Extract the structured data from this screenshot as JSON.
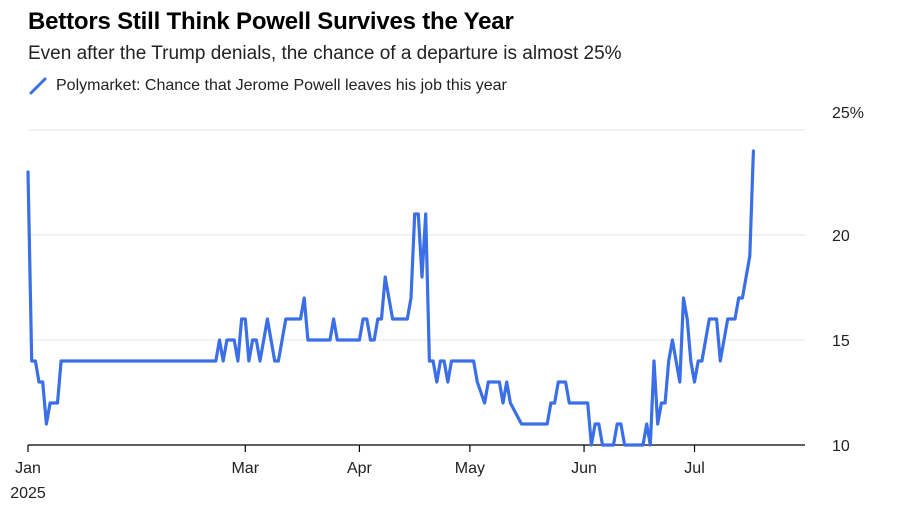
{
  "header": {
    "title": "Bettors Still Think Powell Survives the Year",
    "subtitle": "Even after the Trump denials, the chance of a departure is almost 25%"
  },
  "legend": {
    "label": "Polymarket: Chance that Jerome Powell leaves his job this year"
  },
  "colors": {
    "series": "#3a6fe8",
    "grid": "#e6e6e6",
    "axis": "#000000"
  },
  "chart_data": {
    "type": "line",
    "series": [
      {
        "name": "Polymarket: Chance that Jerome Powell leaves his job this year",
        "points": [
          [
            "2025-01-01",
            23
          ],
          [
            "2025-01-02",
            14
          ],
          [
            "2025-01-03",
            14
          ],
          [
            "2025-01-04",
            13
          ],
          [
            "2025-01-05",
            13
          ],
          [
            "2025-01-06",
            11
          ],
          [
            "2025-01-07",
            12
          ],
          [
            "2025-01-09",
            12
          ],
          [
            "2025-01-10",
            14
          ],
          [
            "2025-01-20",
            14
          ],
          [
            "2025-02-01",
            14
          ],
          [
            "2025-02-15",
            14
          ],
          [
            "2025-02-21",
            14
          ],
          [
            "2025-02-22",
            15
          ],
          [
            "2025-02-23",
            14
          ],
          [
            "2025-02-24",
            15
          ],
          [
            "2025-02-26",
            15
          ],
          [
            "2025-02-27",
            14
          ],
          [
            "2025-02-28",
            16
          ],
          [
            "2025-03-01",
            16
          ],
          [
            "2025-03-02",
            14
          ],
          [
            "2025-03-03",
            15
          ],
          [
            "2025-03-04",
            15
          ],
          [
            "2025-03-05",
            14
          ],
          [
            "2025-03-06",
            15
          ],
          [
            "2025-03-07",
            16
          ],
          [
            "2025-03-09",
            14
          ],
          [
            "2025-03-10",
            14
          ],
          [
            "2025-03-12",
            16
          ],
          [
            "2025-03-16",
            16
          ],
          [
            "2025-03-17",
            17
          ],
          [
            "2025-03-18",
            15
          ],
          [
            "2025-03-24",
            15
          ],
          [
            "2025-03-25",
            16
          ],
          [
            "2025-03-26",
            15
          ],
          [
            "2025-04-01",
            15
          ],
          [
            "2025-04-02",
            16
          ],
          [
            "2025-04-03",
            16
          ],
          [
            "2025-04-04",
            15
          ],
          [
            "2025-04-05",
            15
          ],
          [
            "2025-04-06",
            16
          ],
          [
            "2025-04-07",
            16
          ],
          [
            "2025-04-08",
            18
          ],
          [
            "2025-04-10",
            16
          ],
          [
            "2025-04-12",
            16
          ],
          [
            "2025-04-14",
            16
          ],
          [
            "2025-04-15",
            17
          ],
          [
            "2025-04-16",
            21
          ],
          [
            "2025-04-17",
            21
          ],
          [
            "2025-04-18",
            18
          ],
          [
            "2025-04-19",
            21
          ],
          [
            "2025-04-20",
            14
          ],
          [
            "2025-04-21",
            14
          ],
          [
            "2025-04-22",
            13
          ],
          [
            "2025-04-23",
            14
          ],
          [
            "2025-04-24",
            14
          ],
          [
            "2025-04-25",
            13
          ],
          [
            "2025-04-26",
            14
          ],
          [
            "2025-04-30",
            14
          ],
          [
            "2025-05-01",
            14
          ],
          [
            "2025-05-02",
            14
          ],
          [
            "2025-05-03",
            13
          ],
          [
            "2025-05-05",
            12
          ],
          [
            "2025-05-06",
            13
          ],
          [
            "2025-05-09",
            13
          ],
          [
            "2025-05-10",
            12
          ],
          [
            "2025-05-11",
            13
          ],
          [
            "2025-05-12",
            12
          ],
          [
            "2025-05-15",
            11
          ],
          [
            "2025-05-22",
            11
          ],
          [
            "2025-05-23",
            12
          ],
          [
            "2025-05-24",
            12
          ],
          [
            "2025-05-25",
            13
          ],
          [
            "2025-05-27",
            13
          ],
          [
            "2025-05-28",
            12
          ],
          [
            "2025-06-02",
            12
          ],
          [
            "2025-06-03",
            10
          ],
          [
            "2025-06-04",
            11
          ],
          [
            "2025-06-05",
            11
          ],
          [
            "2025-06-06",
            10
          ],
          [
            "2025-06-09",
            10
          ],
          [
            "2025-06-10",
            11
          ],
          [
            "2025-06-11",
            11
          ],
          [
            "2025-06-12",
            10
          ],
          [
            "2025-06-17",
            10
          ],
          [
            "2025-06-18",
            11
          ],
          [
            "2025-06-19",
            10
          ],
          [
            "2025-06-20",
            14
          ],
          [
            "2025-06-21",
            11
          ],
          [
            "2025-06-22",
            12
          ],
          [
            "2025-06-23",
            12
          ],
          [
            "2025-06-24",
            14
          ],
          [
            "2025-06-25",
            15
          ],
          [
            "2025-06-26",
            14
          ],
          [
            "2025-06-27",
            13
          ],
          [
            "2025-06-28",
            17
          ],
          [
            "2025-06-29",
            16
          ],
          [
            "2025-06-30",
            14
          ],
          [
            "2025-07-01",
            13
          ],
          [
            "2025-07-02",
            14
          ],
          [
            "2025-07-03",
            14
          ],
          [
            "2025-07-05",
            16
          ],
          [
            "2025-07-07",
            16
          ],
          [
            "2025-07-08",
            14
          ],
          [
            "2025-07-09",
            15
          ],
          [
            "2025-07-10",
            16
          ],
          [
            "2025-07-12",
            16
          ],
          [
            "2025-07-13",
            17
          ],
          [
            "2025-07-14",
            17
          ],
          [
            "2025-07-15",
            18
          ],
          [
            "2025-07-16",
            19
          ],
          [
            "2025-07-17",
            24
          ]
        ]
      }
    ],
    "xlabel": "",
    "ylabel": "",
    "y_ticks": [
      10,
      15,
      20,
      25
    ],
    "y_tick_labels": [
      "10",
      "15",
      "20",
      "25%"
    ],
    "ylim": [
      10,
      25
    ],
    "x_range": [
      "2025-01-01",
      "2025-07-31"
    ],
    "x_ticks": [
      {
        "date": "2025-01-01",
        "label": "Jan",
        "sublabel": "2025"
      },
      {
        "date": "2025-03-01",
        "label": "Mar",
        "sublabel": ""
      },
      {
        "date": "2025-04-01",
        "label": "Apr",
        "sublabel": ""
      },
      {
        "date": "2025-05-01",
        "label": "May",
        "sublabel": ""
      },
      {
        "date": "2025-06-01",
        "label": "Jun",
        "sublabel": ""
      },
      {
        "date": "2025-07-01",
        "label": "Jul",
        "sublabel": ""
      }
    ],
    "grid": true,
    "y_axis_side": "right",
    "legend_position": "top-left"
  }
}
